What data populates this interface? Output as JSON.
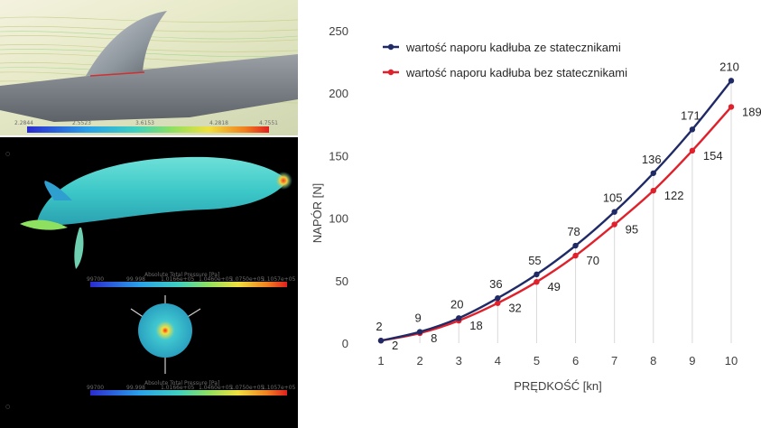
{
  "chart_data": {
    "type": "line",
    "title": "",
    "xlabel": "PRĘDKOŚĆ [kn]",
    "ylabel": "NAPÓR [N]",
    "x": [
      1,
      2,
      3,
      4,
      5,
      6,
      7,
      8,
      9,
      10
    ],
    "xlim": [
      1,
      10
    ],
    "ylim": [
      0,
      250
    ],
    "yticks": [
      0,
      50,
      100,
      150,
      200,
      250
    ],
    "grid": "vertical drop lines from each point",
    "legend_position": "top-left",
    "series": [
      {
        "name": "wartość naporu kadłuba ze statecznikami",
        "color": "#1f2a66",
        "values": [
          2,
          9,
          20,
          36,
          55,
          78,
          105,
          136,
          171,
          210
        ]
      },
      {
        "name": "wartość naporu kadłuba bez statecznikami",
        "color": "#e0202a",
        "values": [
          2,
          8,
          18,
          32,
          49,
          70,
          95,
          122,
          154,
          189
        ]
      }
    ]
  },
  "simulation": {
    "top_scale": [
      "2.2844",
      "2.5523",
      "3.6153",
      "4.2818",
      "4.7551"
    ],
    "legend_title": "Absolute Total Pressure [Pa]",
    "middle_scale": [
      "99700",
      "99.998",
      "1.0166e+05",
      "1.0460e+05",
      "1.0750e+05",
      "1.1057e+05"
    ],
    "bottom_scale": [
      "99700",
      "99.998",
      "1.0166e+05",
      "1.0460e+05",
      "1.0750e+05",
      "1.1057e+05"
    ]
  }
}
